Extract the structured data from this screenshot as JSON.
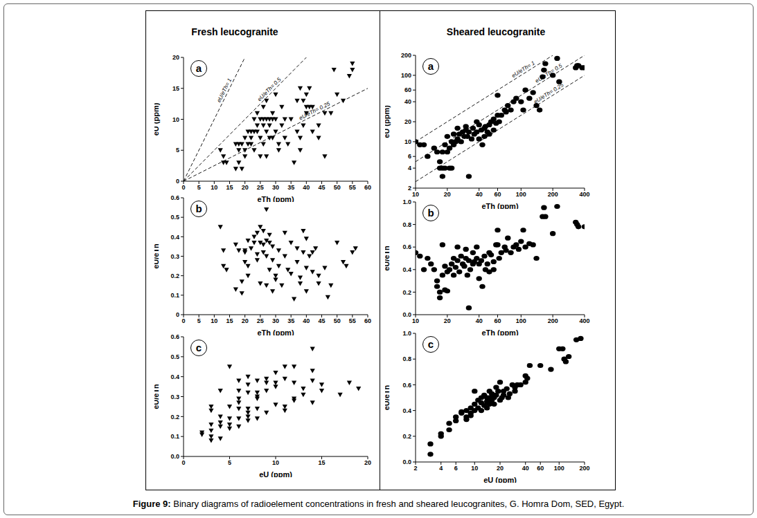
{
  "figure": {
    "columns": [
      "Fresh leucogranite",
      "Sheared leucogranite"
    ],
    "caption": {
      "label": "Figure 9:",
      "text": "Binary diagrams of radioelement concentrations in fresh and sheared leucogranites, G. Homra Dom, SED, Egypt."
    }
  },
  "chart_data": [
    {
      "type": "scatter",
      "title": "a",
      "x_label": "eTh (ppm)",
      "y_label": "eU (ppm)",
      "color": "#000000",
      "marker": "triangle-down",
      "xlim": [
        0,
        60
      ],
      "xticks": [
        0,
        5,
        10,
        15,
        20,
        25,
        30,
        35,
        40,
        45,
        50,
        55,
        60
      ],
      "ylim": [
        0,
        20
      ],
      "yticks": [
        0,
        5,
        10,
        15,
        20
      ],
      "reference_lines": [
        {
          "label": "eU/eTh= 1",
          "ratio": 1,
          "line_style": "dashed"
        },
        {
          "label": "eU/eTh= 0.5",
          "ratio": 0.5,
          "line_style": "dashed"
        },
        {
          "label": "eU/eTh= 0.25",
          "ratio": 0.25,
          "line_style": "dashed"
        }
      ],
      "x": [
        12,
        13,
        14,
        13,
        17,
        17,
        18,
        18,
        18,
        19,
        19,
        20,
        20,
        20,
        21,
        21,
        22,
        22,
        22,
        23,
        23,
        23,
        24,
        24,
        24,
        25,
        25,
        25,
        26,
        26,
        26,
        26,
        27,
        27,
        27,
        27,
        28,
        28,
        28,
        29,
        29,
        29,
        30,
        30,
        30,
        31,
        31,
        32,
        32,
        33,
        33,
        34,
        35,
        36,
        37,
        37,
        38,
        38,
        38,
        39,
        39,
        40,
        40,
        40,
        41,
        41,
        42,
        42,
        44,
        44,
        46,
        46,
        48,
        49,
        50,
        52,
        54,
        55,
        55
      ],
      "values": [
        5,
        3,
        3,
        4,
        6,
        2,
        6,
        3,
        5,
        2,
        6,
        7,
        5,
        4,
        6,
        8,
        8,
        7,
        6,
        8,
        5,
        10,
        8,
        9,
        11,
        7,
        10,
        4,
        12,
        10,
        9,
        6,
        8,
        10,
        13,
        4,
        7,
        10,
        9,
        10,
        11,
        7,
        8,
        14,
        10,
        5,
        6,
        9,
        12,
        7,
        10,
        6,
        10,
        3,
        8,
        13,
        15,
        7,
        5,
        13,
        9,
        14,
        12,
        11,
        12,
        15,
        12,
        8,
        9,
        7,
        4,
        11,
        11,
        18,
        14,
        13,
        17,
        19,
        18
      ]
    },
    {
      "type": "scatter",
      "title": "b",
      "x_label": "eTh (ppm)",
      "y_label": "eU/eTh",
      "color": "#000000",
      "marker": "triangle-down",
      "xlim": [
        0,
        60
      ],
      "xticks": [
        0,
        5,
        10,
        15,
        20,
        25,
        30,
        35,
        40,
        45,
        50,
        55,
        60
      ],
      "ylim": [
        0,
        0.6
      ],
      "yticks": [
        0,
        0.1,
        0.2,
        0.3,
        0.4,
        0.5,
        0.6
      ],
      "x": [
        12,
        13,
        13,
        14,
        17,
        17,
        18,
        19,
        19,
        20,
        20,
        20,
        21,
        21,
        21,
        22,
        23,
        23,
        24,
        24,
        24,
        25,
        25,
        25,
        26,
        26,
        26,
        27,
        27,
        27,
        27,
        28,
        28,
        28,
        29,
        29,
        29,
        30,
        30,
        31,
        31,
        32,
        33,
        33,
        34,
        35,
        35,
        36,
        37,
        37,
        38,
        38,
        39,
        39,
        40,
        40,
        40,
        41,
        42,
        42,
        43,
        44,
        44,
        46,
        47,
        48,
        50,
        52,
        53,
        55,
        56
      ],
      "values": [
        0.45,
        0.33,
        0.25,
        0.23,
        0.13,
        0.36,
        0.33,
        0.11,
        0.17,
        0.33,
        0.27,
        0.32,
        0.38,
        0.25,
        0.2,
        0.34,
        0.4,
        0.37,
        0.42,
        0.31,
        0.28,
        0.45,
        0.37,
        0.16,
        0.43,
        0.36,
        0.32,
        0.54,
        0.38,
        0.3,
        0.15,
        0.41,
        0.37,
        0.23,
        0.35,
        0.28,
        0.12,
        0.2,
        0.18,
        0.33,
        0.25,
        0.15,
        0.42,
        0.3,
        0.23,
        0.37,
        0.21,
        0.08,
        0.34,
        0.27,
        0.19,
        0.16,
        0.43,
        0.32,
        0.39,
        0.24,
        0.12,
        0.3,
        0.32,
        0.22,
        0.34,
        0.2,
        0.16,
        0.24,
        0.09,
        0.15,
        0.37,
        0.27,
        0.25,
        0.32,
        0.34
      ]
    },
    {
      "type": "scatter",
      "title": "c",
      "x_label": "eU (ppm)",
      "y_label": "eU/eTh",
      "color": "#000000",
      "marker": "triangle-down",
      "xlim": [
        0,
        20
      ],
      "xticks": [
        0,
        5,
        10,
        15,
        20
      ],
      "ylim": [
        0,
        0.6
      ],
      "yticks": [
        {
          "value": 0,
          "label": "0.0"
        },
        0.1,
        0.2,
        0.3,
        0.4,
        0.5,
        0.6
      ],
      "x": [
        2,
        2,
        3,
        3,
        3,
        3,
        3,
        3,
        4,
        4,
        4,
        4,
        4,
        5,
        5,
        5,
        5,
        5,
        6,
        6,
        6,
        6,
        6,
        6,
        6,
        7,
        7,
        7,
        7,
        7,
        7,
        7,
        8,
        8,
        8,
        8,
        8,
        8,
        9,
        9,
        9,
        9,
        10,
        10,
        10,
        10,
        11,
        11,
        11,
        11,
        12,
        12,
        12,
        12,
        13,
        13,
        14,
        14,
        14,
        14,
        15,
        15,
        17,
        18,
        19
      ],
      "values": [
        0.12,
        0.11,
        0.08,
        0.1,
        0.16,
        0.13,
        0.23,
        0.25,
        0.09,
        0.15,
        0.17,
        0.33,
        0.2,
        0.14,
        0.16,
        0.19,
        0.25,
        0.45,
        0.15,
        0.19,
        0.24,
        0.29,
        0.33,
        0.38,
        0.27,
        0.18,
        0.2,
        0.22,
        0.24,
        0.32,
        0.36,
        0.4,
        0.19,
        0.24,
        0.29,
        0.32,
        0.38,
        0.3,
        0.22,
        0.33,
        0.37,
        0.39,
        0.26,
        0.35,
        0.37,
        0.42,
        0.23,
        0.25,
        0.39,
        0.45,
        0.28,
        0.29,
        0.37,
        0.45,
        0.34,
        0.31,
        0.27,
        0.38,
        0.43,
        0.54,
        0.36,
        0.33,
        0.31,
        0.37,
        0.34
      ]
    },
    {
      "type": "scatter",
      "title": "a",
      "x_label": "eTh (ppm)",
      "y_label": "eU (ppm)",
      "color": "#000000",
      "marker": "circle",
      "log": true,
      "xlim": [
        10,
        400
      ],
      "xticks": [
        10,
        20,
        40,
        60,
        100,
        200,
        400
      ],
      "ylim": [
        2,
        200
      ],
      "yticks": [
        2,
        4,
        6,
        10,
        20,
        40,
        60,
        100,
        200
      ],
      "reference_lines": [
        {
          "label": "eU/eTh= 1",
          "ratio": 1,
          "line_style": "dashed"
        },
        {
          "label": "eU/eTh= 0.5",
          "ratio": 0.5,
          "line_style": "dashed"
        },
        {
          "label": "eU/eTh= 0.25",
          "ratio": 0.25,
          "line_style": "dashed"
        }
      ],
      "x": [
        10,
        11,
        12,
        13,
        15,
        16,
        17,
        17,
        18,
        18,
        18,
        19,
        19,
        20,
        20,
        21,
        21,
        22,
        22,
        23,
        23,
        24,
        25,
        25,
        26,
        27,
        28,
        29,
        30,
        30,
        31,
        32,
        32,
        34,
        35,
        36,
        38,
        38,
        40,
        40,
        42,
        43,
        45,
        45,
        46,
        48,
        50,
        50,
        52,
        55,
        55,
        58,
        60,
        60,
        62,
        65,
        70,
        72,
        75,
        80,
        85,
        90,
        100,
        105,
        110,
        120,
        130,
        140,
        150,
        160,
        165,
        170,
        200,
        220,
        230,
        330,
        340,
        350,
        380,
        400
      ],
      "values": [
        10,
        9,
        9,
        6,
        8,
        7,
        5,
        4,
        4,
        3,
        7,
        4,
        9,
        12,
        7,
        8,
        4,
        4,
        10,
        9,
        13,
        10,
        11,
        16,
        13,
        10,
        14,
        12,
        15,
        17,
        12,
        3,
        14,
        11,
        16,
        13,
        14,
        20,
        18,
        11,
        15,
        9,
        12,
        16,
        17,
        14,
        18,
        13,
        20,
        15,
        22,
        19,
        25,
        50,
        20,
        25,
        30,
        28,
        35,
        30,
        40,
        45,
        40,
        30,
        60,
        45,
        55,
        35,
        30,
        95,
        120,
        150,
        100,
        180,
        80,
        130,
        140,
        140,
        130,
        130
      ]
    },
    {
      "type": "scatter",
      "title": "b",
      "x_label": "eTh (ppm)",
      "y_label": "eU/eTh",
      "color": "#000000",
      "marker": "circle",
      "log": "x",
      "xlim": [
        10,
        400
      ],
      "xticks": [
        10,
        20,
        40,
        60,
        100,
        200,
        400
      ],
      "ylim": [
        0,
        1
      ],
      "yticks": [
        {
          "value": 0,
          "label": "0.0"
        },
        0.2,
        0.4,
        0.6,
        0.8,
        {
          "value": 1,
          "label": "1.0"
        }
      ],
      "x": [
        10,
        11,
        12,
        13,
        14,
        15,
        16,
        16,
        17,
        17,
        18,
        18,
        19,
        19,
        20,
        20,
        21,
        22,
        23,
        23,
        24,
        25,
        25,
        26,
        27,
        28,
        29,
        30,
        30,
        31,
        32,
        32,
        33,
        35,
        35,
        36,
        38,
        38,
        40,
        40,
        42,
        43,
        45,
        46,
        48,
        50,
        50,
        52,
        55,
        55,
        58,
        60,
        60,
        62,
        65,
        70,
        72,
        75,
        80,
        85,
        90,
        95,
        100,
        105,
        110,
        120,
        130,
        140,
        160,
        165,
        170,
        200,
        220,
        330,
        340,
        350,
        400
      ],
      "values": [
        0.55,
        0.52,
        0.4,
        0.5,
        0.45,
        0.4,
        0.3,
        0.25,
        0.2,
        0.15,
        0.35,
        0.62,
        0.22,
        0.43,
        0.21,
        0.38,
        0.4,
        0.45,
        0.35,
        0.5,
        0.42,
        0.48,
        0.6,
        0.38,
        0.52,
        0.45,
        0.43,
        0.58,
        0.5,
        0.35,
        0.06,
        0.48,
        0.4,
        0.55,
        0.45,
        0.47,
        0.5,
        0.6,
        0.45,
        0.32,
        0.48,
        0.25,
        0.52,
        0.4,
        0.45,
        0.55,
        0.38,
        0.53,
        0.4,
        0.47,
        0.62,
        0.62,
        0.75,
        0.5,
        0.55,
        0.6,
        0.57,
        0.68,
        0.55,
        0.6,
        0.62,
        0.58,
        0.65,
        0.75,
        0.6,
        0.63,
        0.62,
        0.5,
        0.87,
        0.95,
        0.87,
        0.72,
        0.96,
        0.82,
        0.8,
        0.78,
        0.78
      ]
    },
    {
      "type": "scatter",
      "title": "c",
      "x_label": "eU (ppm)",
      "y_label": "eU/eTh",
      "color": "#000000",
      "marker": "circle",
      "log": "x",
      "xlim": [
        2,
        200
      ],
      "xticks": [
        2,
        4,
        6,
        10,
        20,
        40,
        60,
        100,
        200
      ],
      "ylim": [
        0,
        1
      ],
      "yticks": [
        {
          "value": 0,
          "label": "0.0"
        },
        0.2,
        0.4,
        0.6,
        0.8,
        {
          "value": 1,
          "label": "1.0"
        }
      ],
      "x": [
        3,
        3,
        4,
        4,
        5,
        5,
        6,
        6,
        7,
        7,
        8,
        8,
        8,
        9,
        9,
        9,
        10,
        10,
        10,
        11,
        11,
        12,
        12,
        12,
        13,
        13,
        14,
        14,
        14,
        15,
        15,
        15,
        16,
        16,
        17,
        17,
        18,
        18,
        19,
        20,
        20,
        21,
        22,
        22,
        24,
        25,
        26,
        28,
        30,
        30,
        32,
        35,
        40,
        40,
        42,
        45,
        60,
        80,
        100,
        110,
        115,
        120,
        130,
        160,
        180
      ],
      "values": [
        0.06,
        0.14,
        0.2,
        0.22,
        0.25,
        0.3,
        0.32,
        0.35,
        0.38,
        0.39,
        0.35,
        0.4,
        0.33,
        0.38,
        0.42,
        0.36,
        0.45,
        0.4,
        0.55,
        0.42,
        0.48,
        0.4,
        0.46,
        0.5,
        0.44,
        0.52,
        0.47,
        0.5,
        0.42,
        0.45,
        0.55,
        0.5,
        0.48,
        0.53,
        0.5,
        0.45,
        0.52,
        0.58,
        0.55,
        0.48,
        0.62,
        0.5,
        0.55,
        0.52,
        0.57,
        0.5,
        0.53,
        0.6,
        0.58,
        0.55,
        0.6,
        0.6,
        0.62,
        0.67,
        0.65,
        0.75,
        0.75,
        0.72,
        0.88,
        0.88,
        0.8,
        0.78,
        0.82,
        0.95,
        0.96
      ]
    }
  ]
}
